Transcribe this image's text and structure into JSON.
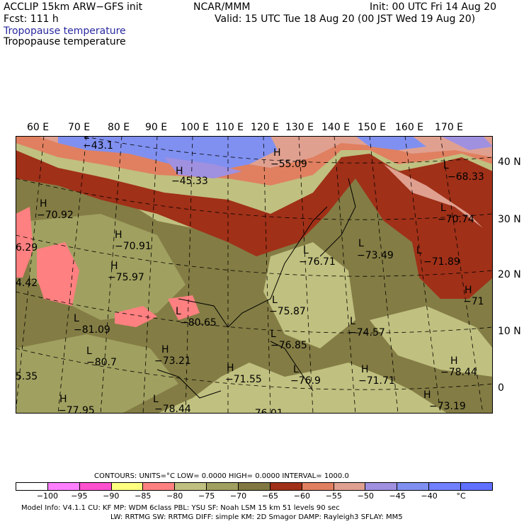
{
  "header": {
    "model": "ACCLIP 15km ARW−GFS init",
    "center": "NCAR/MMM",
    "init": "Init: 00 UTC Fri 14 Aug 20",
    "fcst": "Fcst:  111 h",
    "valid": "Valid: 15 UTC Tue 18 Aug 20 (00 JST Wed 19 Aug 20)",
    "field_blue": "Tropopause temperature",
    "field_black": "Tropopause temperature"
  },
  "axes": {
    "lon": [
      "60 E",
      "70 E",
      "80 E",
      "90 E",
      "100 E",
      "110 E",
      "120 E",
      "130 E",
      "140 E",
      "150 E",
      "160 E",
      "170 E"
    ],
    "lat": [
      "40 N",
      "30 N",
      "20 N",
      "10 N",
      "0"
    ]
  },
  "map_labels": [
    {
      "mark": "L",
      "value": "−43.1"
    },
    {
      "mark": "H",
      "value": "−45.33"
    },
    {
      "mark": "H",
      "value": "−55.09"
    },
    {
      "mark": "L",
      "value": "−68.33"
    },
    {
      "mark": "H",
      "value": "−70.92"
    },
    {
      "mark": "L",
      "value": "−70.74"
    },
    {
      "mark": "H",
      "value": "−70.91"
    },
    {
      "mark": "",
      "value": "6.29"
    },
    {
      "mark": "L",
      "value": "−73.49"
    },
    {
      "mark": "L",
      "value": "−76.71"
    },
    {
      "mark": "L",
      "value": "−71.89"
    },
    {
      "mark": "H",
      "value": "−75.97"
    },
    {
      "mark": "",
      "value": "4.42"
    },
    {
      "mark": "H",
      "value": "−71"
    },
    {
      "mark": "L",
      "value": "−75.87"
    },
    {
      "mark": "L",
      "value": "−80.65"
    },
    {
      "mark": "L",
      "value": "−81.09"
    },
    {
      "mark": "L",
      "value": "−74.57"
    },
    {
      "mark": "L",
      "value": "−76.85"
    },
    {
      "mark": "L",
      "value": "−80.7"
    },
    {
      "mark": "H",
      "value": "−73.21"
    },
    {
      "mark": "H",
      "value": "−78.44"
    },
    {
      "mark": "",
      "value": "5.35"
    },
    {
      "mark": "H",
      "value": "−71.55"
    },
    {
      "mark": "L",
      "value": "−76.9"
    },
    {
      "mark": "H",
      "value": "−71.71"
    },
    {
      "mark": "H",
      "value": "−77.95"
    },
    {
      "mark": "L",
      "value": "−78.44"
    },
    {
      "mark": "H",
      "value": "−73.19"
    },
    {
      "mark": "",
      "value": "−76.01"
    }
  ],
  "footer": {
    "contours": "CONTOURS:  UNITS=°C  LOW=  0.0000        HIGH=  0.0000        INTERVAL=   1000.0",
    "model_info": "Model Info: V4.1.1       CU: KF         MP: WDM 6class   PBL: YSU         SF: Noah LSM      15 km    51 levels    90 sec",
    "model_info2": "LW: RRTMG     SW: RRTMG   DIFF: simple KM: 2D Smagor DAMP: Rayleigh3  SFLAY: MM5"
  },
  "colorbar": {
    "colors": [
      "#ffffff",
      "#ff80ff",
      "#ff50d0",
      "#ffff80",
      "#ff8080",
      "#c0c080",
      "#a0a060",
      "#807840",
      "#a03018",
      "#e08060",
      "#e0a090",
      "#a090e0",
      "#8090f0",
      "#7080ff",
      "#6070ff"
    ],
    "labels": [
      "−100",
      "−95",
      "−90",
      "−85",
      "−80",
      "−75",
      "−70",
      "−65",
      "−60",
      "−55",
      "−50",
      "−45",
      "−40",
      "°C"
    ]
  }
}
